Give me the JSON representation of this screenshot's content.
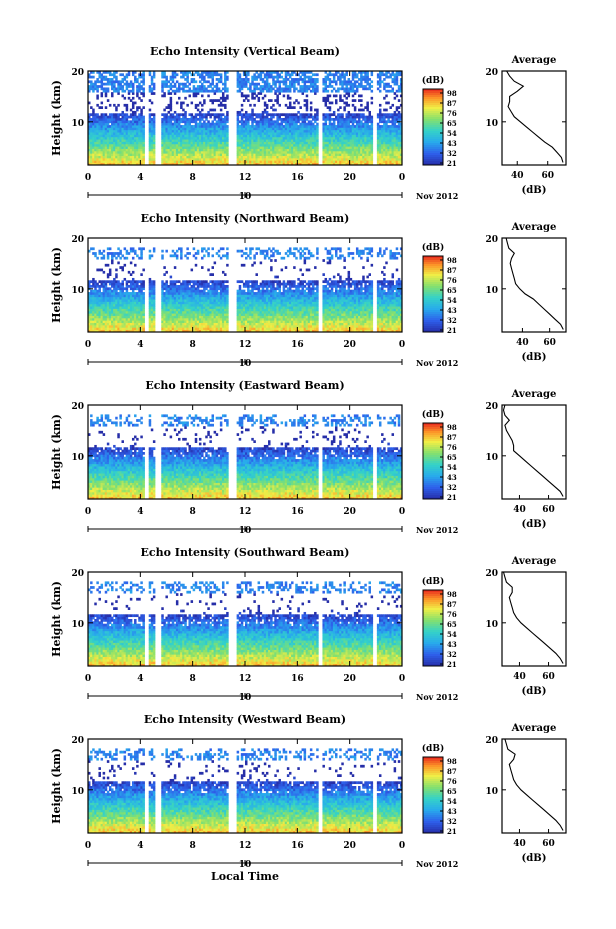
{
  "chart_data": [
    {
      "type": "heatmap",
      "title": "Echo Intensity (Vertical Beam)",
      "ylabel": "Height (km)",
      "xlim": [
        0,
        24
      ],
      "ylim": [
        1.5,
        20
      ],
      "x_ticks": [
        "0",
        "4",
        "8",
        "12",
        "16",
        "20",
        "0"
      ],
      "y_ticks": [
        "20",
        "10"
      ],
      "date_marker": "10",
      "date_label": "Nov 2012",
      "colorbar": {
        "label": "(dB)",
        "ticks": [
          "98",
          "87",
          "76",
          "65",
          "54",
          "43",
          "32",
          "21"
        ]
      },
      "profile": {
        "title": "Average",
        "xlabel": "(dB)",
        "x_ticks": [
          "40",
          "60"
        ],
        "xlim": [
          30,
          72
        ],
        "y_ticks": [
          "20",
          "10"
        ],
        "points": [
          [
            70,
            2
          ],
          [
            69,
            3
          ],
          [
            66,
            4
          ],
          [
            63,
            5
          ],
          [
            58,
            6
          ],
          [
            54,
            7
          ],
          [
            50,
            8
          ],
          [
            46,
            9
          ],
          [
            42,
            10
          ],
          [
            38,
            11
          ],
          [
            36,
            12
          ],
          [
            34,
            13
          ],
          [
            35,
            14
          ],
          [
            35,
            15
          ],
          [
            40,
            16
          ],
          [
            44,
            17
          ],
          [
            38,
            18
          ],
          [
            35,
            19
          ],
          [
            33,
            20
          ]
        ]
      },
      "data_gaps_hours": [
        [
          4.3,
          4.7
        ],
        [
          5.1,
          5.6
        ],
        [
          10.8,
          11.3
        ],
        [
          17.6,
          17.9
        ],
        [
          21.7,
          22.0
        ]
      ]
    },
    {
      "type": "heatmap",
      "title": "Echo Intensity (Northward Beam)",
      "ylabel": "Height (km)",
      "xlim": [
        0,
        24
      ],
      "ylim": [
        1.5,
        20
      ],
      "x_ticks": [
        "0",
        "4",
        "8",
        "12",
        "16",
        "20",
        "0"
      ],
      "y_ticks": [
        "20",
        "10"
      ],
      "date_marker": "10",
      "date_label": "Nov 2012",
      "colorbar": {
        "label": "(dB)",
        "ticks": [
          "98",
          "87",
          "76",
          "65",
          "54",
          "43",
          "32",
          "21"
        ]
      },
      "profile": {
        "title": "Average",
        "xlabel": "(dB)",
        "x_ticks": [
          "40",
          "60"
        ],
        "xlim": [
          25,
          72
        ],
        "y_ticks": [
          "20",
          "10"
        ],
        "points": [
          [
            70,
            2
          ],
          [
            68,
            3
          ],
          [
            64,
            4
          ],
          [
            60,
            5
          ],
          [
            56,
            6
          ],
          [
            52,
            7
          ],
          [
            48,
            8
          ],
          [
            42,
            9
          ],
          [
            38,
            10
          ],
          [
            35,
            11
          ],
          [
            34,
            12
          ],
          [
            33,
            13
          ],
          [
            32,
            14
          ],
          [
            31,
            15
          ],
          [
            32,
            16
          ],
          [
            34,
            17
          ],
          [
            30,
            18
          ],
          [
            29,
            19
          ],
          [
            28,
            20
          ]
        ]
      },
      "data_gaps_hours": [
        [
          4.3,
          4.7
        ],
        [
          5.1,
          5.6
        ],
        [
          10.8,
          11.3
        ],
        [
          17.6,
          17.9
        ],
        [
          21.7,
          22.0
        ]
      ]
    },
    {
      "type": "heatmap",
      "title": "Echo Intensity (Eastward Beam)",
      "ylabel": "Height (km)",
      "xlim": [
        0,
        24
      ],
      "ylim": [
        1.5,
        20
      ],
      "x_ticks": [
        "0",
        "4",
        "8",
        "12",
        "16",
        "20",
        "0"
      ],
      "y_ticks": [
        "20",
        "10"
      ],
      "date_marker": "10",
      "date_label": "Nov 2012",
      "colorbar": {
        "label": "(dB)",
        "ticks": [
          "98",
          "87",
          "76",
          "65",
          "54",
          "43",
          "32",
          "21"
        ]
      },
      "profile": {
        "title": "Average",
        "xlabel": "(dB)",
        "x_ticks": [
          "40",
          "60"
        ],
        "xlim": [
          28,
          72
        ],
        "y_ticks": [
          "20",
          "10"
        ],
        "points": [
          [
            70,
            2
          ],
          [
            68,
            3
          ],
          [
            64,
            4
          ],
          [
            60,
            5
          ],
          [
            56,
            6
          ],
          [
            52,
            7
          ],
          [
            48,
            8
          ],
          [
            44,
            9
          ],
          [
            40,
            10
          ],
          [
            36,
            11
          ],
          [
            36,
            12
          ],
          [
            35,
            13
          ],
          [
            33,
            14
          ],
          [
            31,
            15
          ],
          [
            30,
            16
          ],
          [
            33,
            17
          ],
          [
            30,
            18
          ],
          [
            29,
            19
          ],
          [
            30,
            20
          ]
        ]
      },
      "data_gaps_hours": [
        [
          4.3,
          4.7
        ],
        [
          5.1,
          5.6
        ],
        [
          10.8,
          11.3
        ],
        [
          17.6,
          17.9
        ],
        [
          21.7,
          22.0
        ]
      ]
    },
    {
      "type": "heatmap",
      "title": "Echo Intensity (Southward Beam)",
      "ylabel": "Height (km)",
      "xlim": [
        0,
        24
      ],
      "ylim": [
        1.5,
        20
      ],
      "x_ticks": [
        "0",
        "4",
        "8",
        "12",
        "16",
        "20",
        "0"
      ],
      "y_ticks": [
        "20",
        "10"
      ],
      "date_marker": "10",
      "date_label": "Nov 2012",
      "colorbar": {
        "label": "(dB)",
        "ticks": [
          "98",
          "87",
          "76",
          "65",
          "54",
          "43",
          "32",
          "21"
        ]
      },
      "profile": {
        "title": "Average",
        "xlabel": "(dB)",
        "x_ticks": [
          "40",
          "60"
        ],
        "xlim": [
          28,
          72
        ],
        "y_ticks": [
          "20",
          "10"
        ],
        "points": [
          [
            70,
            2
          ],
          [
            68,
            3
          ],
          [
            65,
            4
          ],
          [
            61,
            5
          ],
          [
            57,
            6
          ],
          [
            53,
            7
          ],
          [
            49,
            8
          ],
          [
            45,
            9
          ],
          [
            41,
            10
          ],
          [
            38,
            11
          ],
          [
            36,
            12
          ],
          [
            35,
            13
          ],
          [
            34,
            14
          ],
          [
            33,
            15
          ],
          [
            35,
            16
          ],
          [
            35,
            17
          ],
          [
            31,
            18
          ],
          [
            30,
            19
          ],
          [
            29,
            20
          ]
        ]
      },
      "data_gaps_hours": [
        [
          4.3,
          4.7
        ],
        [
          5.1,
          5.6
        ],
        [
          10.8,
          11.3
        ],
        [
          17.6,
          17.9
        ],
        [
          21.7,
          22.0
        ]
      ]
    },
    {
      "type": "heatmap",
      "title": "Echo Intensity (Westward Beam)",
      "ylabel": "Height (km)",
      "xlabel": "Local Time",
      "xlim": [
        0,
        24
      ],
      "ylim": [
        1.5,
        20
      ],
      "x_ticks": [
        "0",
        "4",
        "8",
        "12",
        "16",
        "20",
        "0"
      ],
      "y_ticks": [
        "20",
        "10"
      ],
      "date_marker": "10",
      "date_label": "Nov 2012",
      "colorbar": {
        "label": "(dB)",
        "ticks": [
          "98",
          "87",
          "76",
          "65",
          "54",
          "43",
          "32",
          "21"
        ]
      },
      "profile": {
        "title": "Average",
        "xlabel": "(dB)",
        "x_ticks": [
          "40",
          "60"
        ],
        "xlim": [
          28,
          72
        ],
        "y_ticks": [
          "20",
          "10"
        ],
        "points": [
          [
            70,
            2
          ],
          [
            68,
            3
          ],
          [
            65,
            4
          ],
          [
            61,
            5
          ],
          [
            57,
            6
          ],
          [
            53,
            7
          ],
          [
            49,
            8
          ],
          [
            45,
            9
          ],
          [
            41,
            10
          ],
          [
            38,
            11
          ],
          [
            36,
            12
          ],
          [
            35,
            13
          ],
          [
            34,
            14
          ],
          [
            33,
            15
          ],
          [
            36,
            16
          ],
          [
            37,
            17
          ],
          [
            32,
            18
          ],
          [
            31,
            19
          ],
          [
            30,
            20
          ]
        ]
      },
      "data_gaps_hours": [
        [
          4.3,
          4.7
        ],
        [
          5.1,
          5.6
        ],
        [
          10.8,
          11.3
        ],
        [
          17.6,
          17.9
        ],
        [
          21.7,
          22.0
        ]
      ]
    }
  ]
}
